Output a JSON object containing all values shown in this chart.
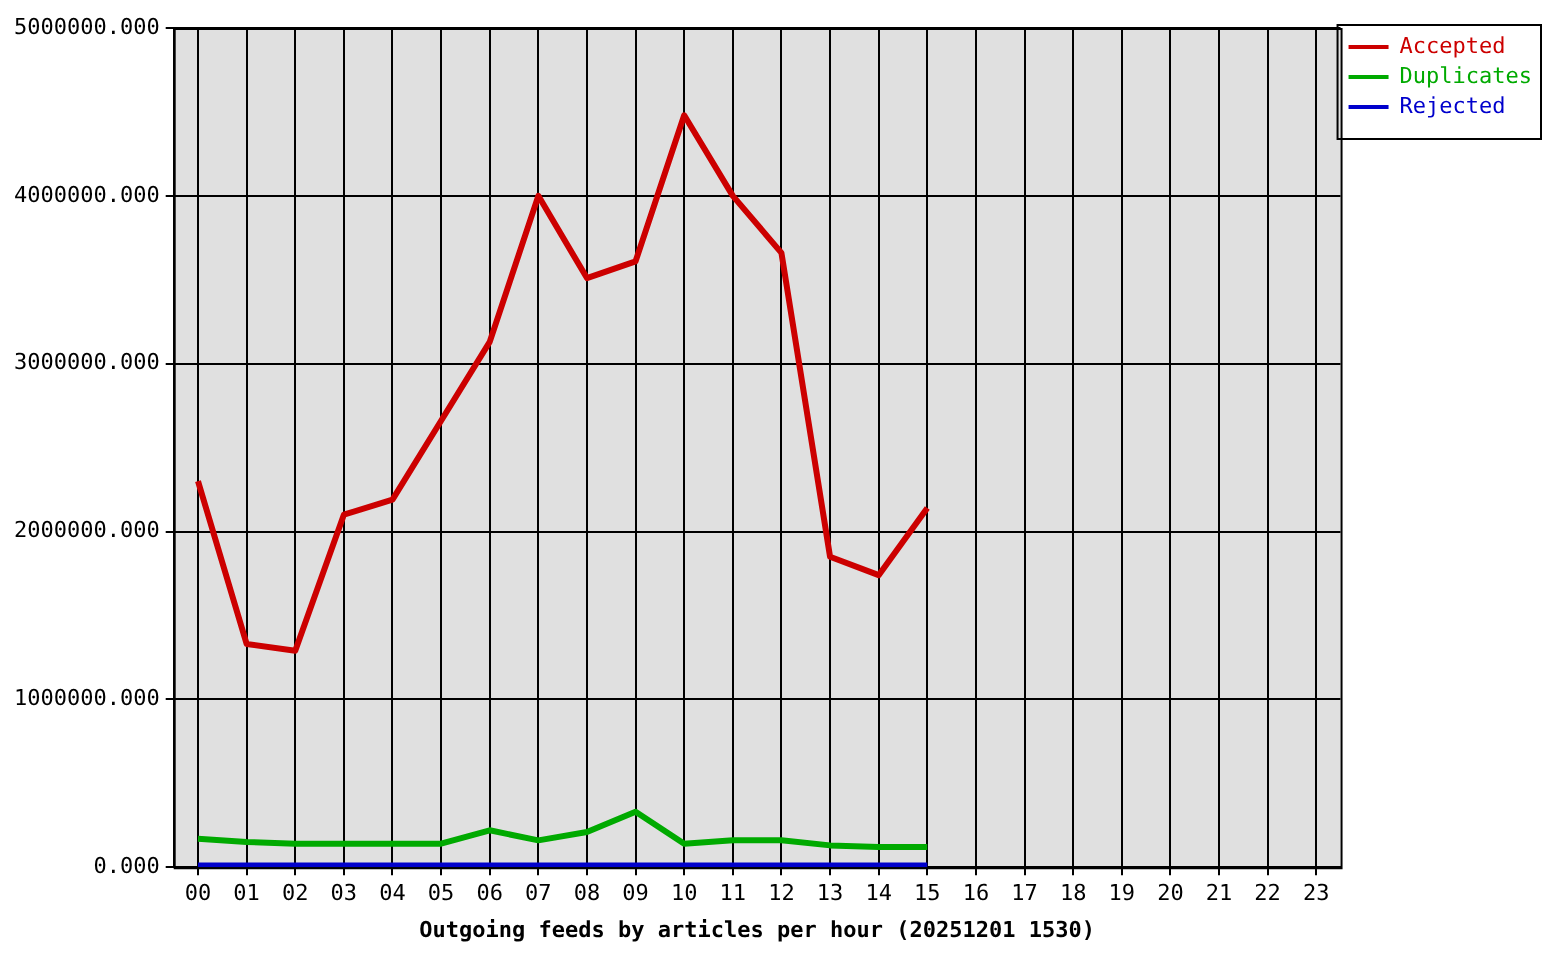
{
  "chart_data": {
    "type": "line",
    "xlabel": "Outgoing feeds by articles per hour (20251201 1530)",
    "categories": [
      "00",
      "01",
      "02",
      "03",
      "04",
      "05",
      "06",
      "07",
      "08",
      "09",
      "10",
      "11",
      "12",
      "13",
      "14",
      "15",
      "16",
      "17",
      "18",
      "19",
      "20",
      "21",
      "22",
      "23"
    ],
    "series": [
      {
        "name": "Accepted",
        "color": "#cc0000",
        "values": [
          2300000,
          1330000,
          1290000,
          2100000,
          2190000,
          2660000,
          3130000,
          4000000,
          3510000,
          3610000,
          4480000,
          4000000,
          3660000,
          1850000,
          1740000,
          2140000,
          null,
          null,
          null,
          null,
          null,
          null,
          null,
          null
        ]
      },
      {
        "name": "Duplicates",
        "color": "#00aa00",
        "values": [
          170000,
          150000,
          140000,
          140000,
          140000,
          140000,
          220000,
          160000,
          210000,
          330000,
          140000,
          160000,
          160000,
          130000,
          120000,
          120000,
          null,
          null,
          null,
          null,
          null,
          null,
          null,
          null
        ]
      },
      {
        "name": "Rejected",
        "color": "#0000cc",
        "values": [
          10000,
          10000,
          10000,
          10000,
          10000,
          10000,
          10000,
          10000,
          10000,
          10000,
          10000,
          10000,
          10000,
          10000,
          10000,
          10000,
          null,
          null,
          null,
          null,
          null,
          null,
          null,
          null
        ]
      }
    ],
    "ylim": [
      0,
      5000000
    ],
    "yticks": [
      {
        "value": 0,
        "label": "0.000"
      },
      {
        "value": 1000000,
        "label": "1000000.000"
      },
      {
        "value": 2000000,
        "label": "2000000.000"
      },
      {
        "value": 3000000,
        "label": "3000000.000"
      },
      {
        "value": 4000000,
        "label": "4000000.000"
      },
      {
        "value": 5000000,
        "label": "5000000.000"
      }
    ],
    "grid": true,
    "legend": "top right",
    "marker": "none",
    "line_style": "solid"
  }
}
